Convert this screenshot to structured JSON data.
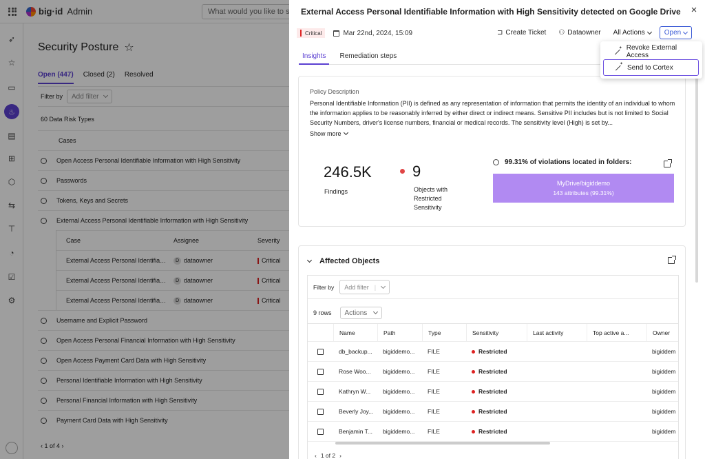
{
  "app": {
    "brand": "big·id",
    "brand_sub": "Admin",
    "search_placeholder": "What would you like to sear",
    "page_title": "Security Posture",
    "tabs": [
      {
        "label": "Open (447)"
      },
      {
        "label": "Closed (2)"
      },
      {
        "label": "Resolved"
      }
    ],
    "filter_by": "Filter by",
    "add_filter": "Add filter",
    "risk_types": "60 Data Risk Types",
    "cases_header": "Cases",
    "cases": [
      "Open Access Personal Identifiable Information with High Sensitivity",
      "Passwords",
      "Tokens, Keys and Secrets",
      "External Access Personal Identifiable Information with High Sensitivity"
    ],
    "nested_headers": {
      "case": "Case",
      "assignee": "Assignee",
      "severity": "Severity"
    },
    "nested_rows": [
      {
        "case": "External Access Personal Identifiabl...",
        "avatar": "D",
        "assignee": "dataowner",
        "severity": "Critical"
      },
      {
        "case": "External Access Personal Identifiabl...",
        "avatar": "D",
        "assignee": "dataowner",
        "severity": "Critical"
      },
      {
        "case": "External Access Personal Identifiabl...",
        "avatar": "D",
        "assignee": "dataowner",
        "severity": "Critical"
      }
    ],
    "cases_after": [
      "Username and Explicit Password",
      "Open Access Personal Financial Information with High Sensitivity",
      "Open Access Payment Card Data with High Sensitivity",
      "Personal Identifiable Information with High Sensitivity",
      "Personal Financial Information with High Sensitivity",
      "Payment Card Data with High Sensitivity"
    ],
    "pager": "1 of 4"
  },
  "drawer": {
    "title": "External Access Personal Identifiable Information with High Sensitivity detected on Google Drive",
    "severity": "Critical",
    "date": "Mar 22nd, 2024, 15:09",
    "actions": {
      "create_ticket": "Create Ticket",
      "owner": "Dataowner",
      "all_actions": "All Actions",
      "status": "Open"
    },
    "menu": [
      {
        "label": "Revoke External Access"
      },
      {
        "label": "Send to Cortex"
      }
    ],
    "tabs": [
      {
        "label": "Insights"
      },
      {
        "label": "Remediation steps"
      }
    ],
    "policy": {
      "label": "Policy Description",
      "text": "Personal Identifiable Information (PII) is defined as any representation of information that permits the identity of an individual to whom the information applies to be reasonably inferred by either direct or indirect means. Sensitive PII includes but is not limited to Social Security Numbers, driver's license numbers, financial or medical records. The sensitivity level (High) is set by...",
      "show_more": "Show more"
    },
    "stats": {
      "findings_value": "246.5K",
      "findings_label": "Findings",
      "objects_value": "9",
      "objects_label": "Objects with Restricted Sensitivity",
      "violations_head": "99.31% of violations located in folders:",
      "folder_name": "MyDrive/bigiddemo",
      "folder_attrs": "143 attributes (99.31%)"
    },
    "affected": {
      "title": "Affected Objects",
      "filter_by": "Filter by",
      "add_filter": "Add filter",
      "row_count": "9 rows",
      "actions": "Actions",
      "headers": [
        "Name",
        "Path",
        "Type",
        "Sensitivity",
        "Last activity",
        "Top active a...",
        "Owner"
      ],
      "rows": [
        {
          "name": "db_backup...",
          "path": "bigiddemo...",
          "type": "FILE",
          "sensitivity": "Restricted",
          "last": "",
          "top": "",
          "owner": "bigiddem"
        },
        {
          "name": "Rose Woo...",
          "path": "bigiddemo...",
          "type": "FILE",
          "sensitivity": "Restricted",
          "last": "",
          "top": "",
          "owner": "bigiddem"
        },
        {
          "name": "Kathryn W...",
          "path": "bigiddemo...",
          "type": "FILE",
          "sensitivity": "Restricted",
          "last": "",
          "top": "",
          "owner": "bigiddem"
        },
        {
          "name": "Beverly Joy...",
          "path": "bigiddemo...",
          "type": "FILE",
          "sensitivity": "Restricted",
          "last": "",
          "top": "",
          "owner": "bigiddem"
        },
        {
          "name": "Benjamin T...",
          "path": "bigiddemo...",
          "type": "FILE",
          "sensitivity": "Restricted",
          "last": "",
          "top": "",
          "owner": "bigiddem"
        }
      ],
      "pager": "1 of 2"
    }
  },
  "colors": {
    "accent": "#5b3fd1",
    "critical": "#d22222",
    "folder_bar": "#b18af2",
    "open_button": "#3b5bd6"
  }
}
